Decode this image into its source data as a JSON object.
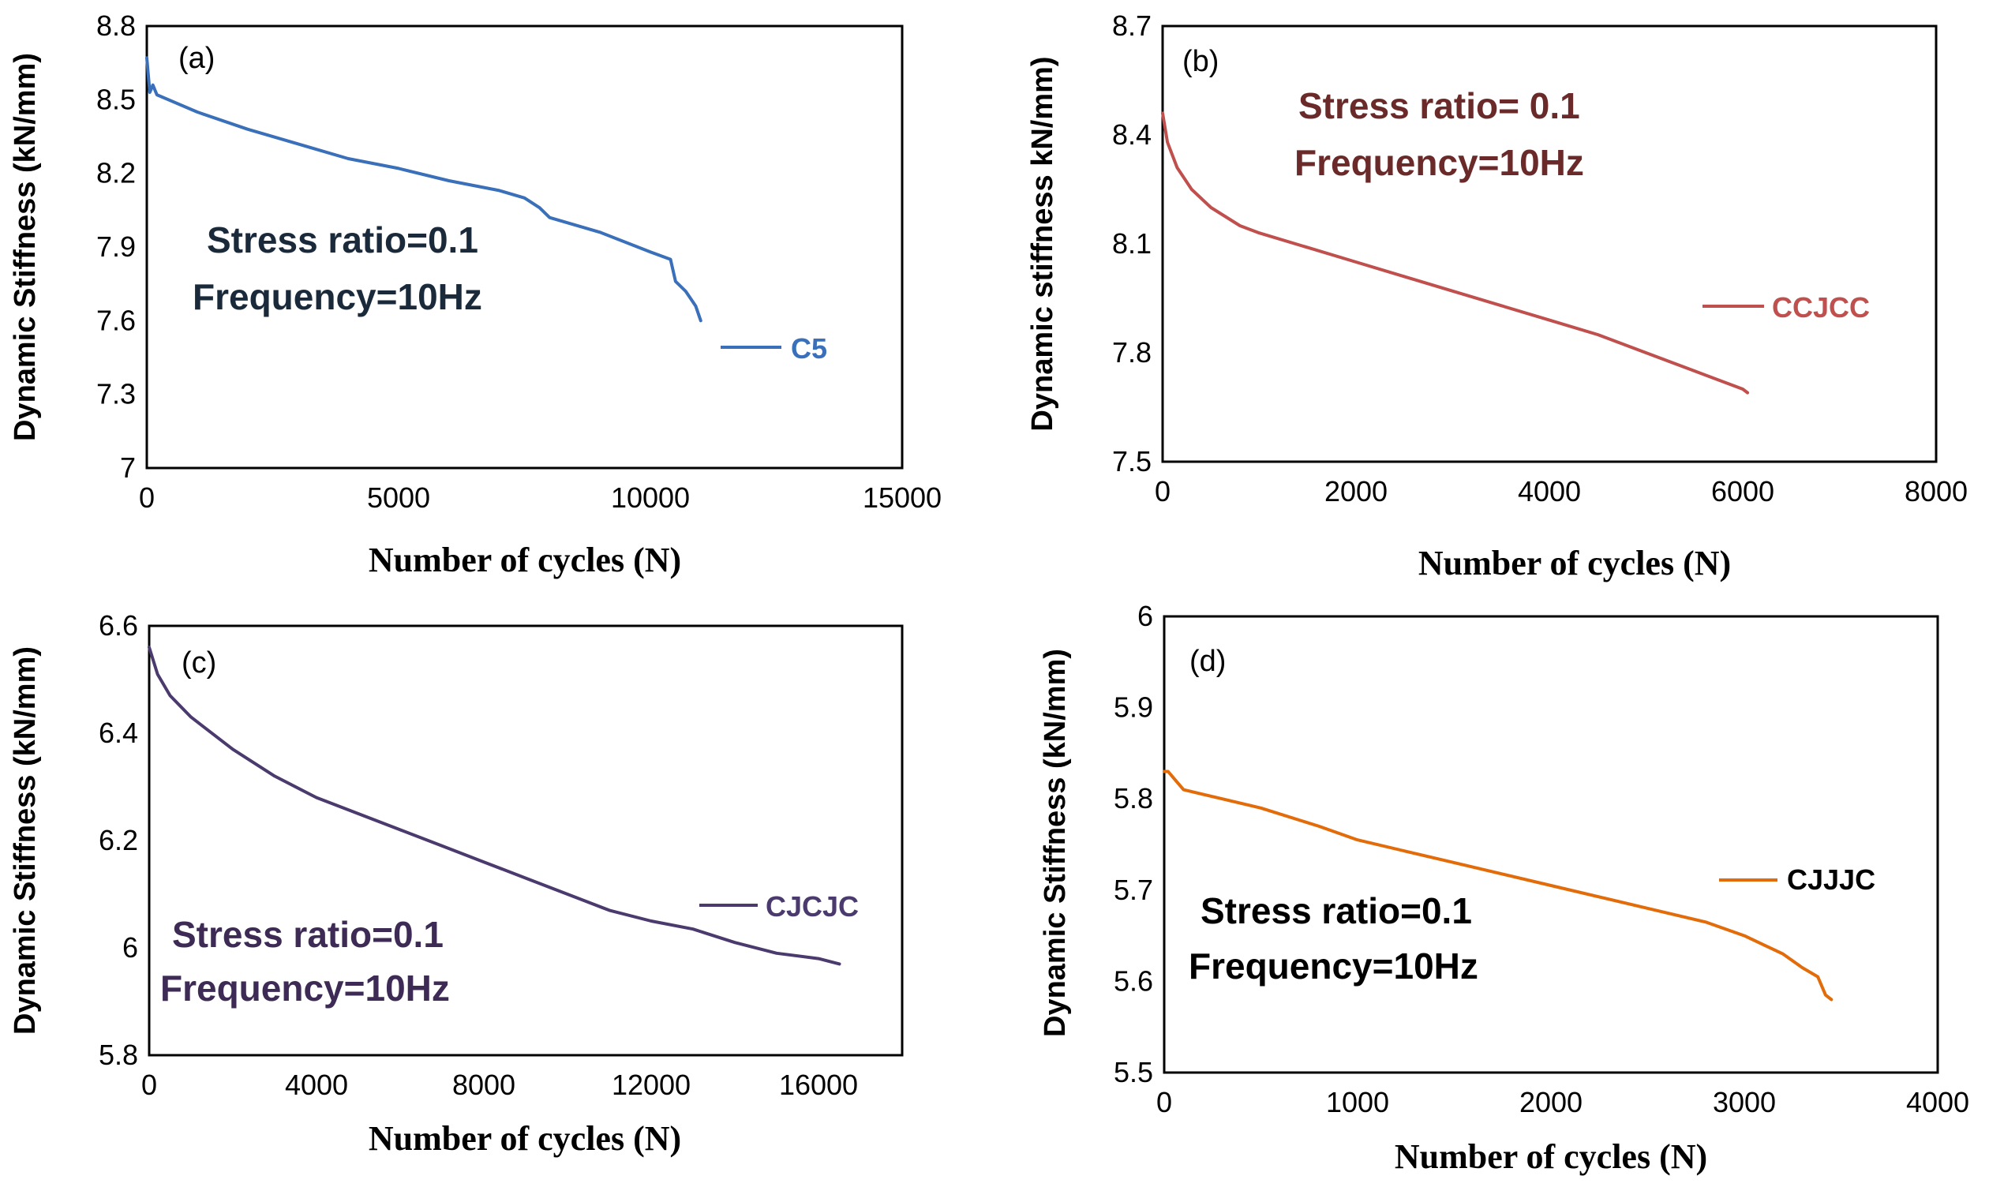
{
  "chart_data": [
    {
      "type": "line",
      "panel_label": "(a)",
      "ylabel": "Dynamic Stiffness (kN/mm)",
      "xlabel": "Number of cycles (N)",
      "xlim": [
        0,
        15000
      ],
      "ylim": [
        7,
        8.8
      ],
      "xticks": [
        0,
        5000,
        10000,
        15000
      ],
      "xtick_labels": [
        "0",
        "5000",
        "10000",
        "15000"
      ],
      "yticks": [
        7,
        7.3,
        7.6,
        7.9,
        8.2,
        8.5,
        8.8
      ],
      "ytick_labels": [
        "7",
        "7.3",
        "7.6",
        "7.9",
        "8.2",
        "8.5",
        "8.8"
      ],
      "annotations": [
        "Stress ratio=0.1",
        "Frequency=10Hz"
      ],
      "annotation_color": "#1a2a3a",
      "series": [
        {
          "name": "C5",
          "color": "#3a6fba",
          "x": [
            0,
            60,
            120,
            200,
            1000,
            2000,
            3000,
            4000,
            5000,
            6000,
            7000,
            7500,
            7800,
            8000,
            9000,
            10000,
            10400,
            10500,
            10700,
            10900,
            11000
          ],
          "y": [
            8.67,
            8.53,
            8.56,
            8.52,
            8.45,
            8.38,
            8.32,
            8.26,
            8.22,
            8.17,
            8.13,
            8.1,
            8.06,
            8.02,
            7.96,
            7.88,
            7.85,
            7.76,
            7.72,
            7.66,
            7.6
          ]
        }
      ]
    },
    {
      "type": "line",
      "panel_label": "(b)",
      "ylabel": "Dynamic stiffness kN/mm)",
      "xlabel": "Number of cycles (N)",
      "xlim": [
        0,
        8000
      ],
      "ylim": [
        7.5,
        8.7
      ],
      "xticks": [
        0,
        2000,
        4000,
        6000,
        8000
      ],
      "xtick_labels": [
        "0",
        "2000",
        "4000",
        "6000",
        "8000"
      ],
      "yticks": [
        7.5,
        7.8,
        8.1,
        8.4,
        8.7
      ],
      "ytick_labels": [
        "7.5",
        "7.8",
        "8.1",
        "8.4",
        "8.7"
      ],
      "annotations": [
        "Stress ratio= 0.1",
        "Frequency=10Hz"
      ],
      "annotation_color": "#6b2a2a",
      "series": [
        {
          "name": "CCJCC",
          "color": "#c0504d",
          "x": [
            0,
            50,
            150,
            300,
            500,
            800,
            1000,
            1500,
            2000,
            2500,
            3000,
            3500,
            4000,
            4500,
            5000,
            5500,
            6000,
            6050
          ],
          "y": [
            8.46,
            8.38,
            8.31,
            8.25,
            8.2,
            8.15,
            8.13,
            8.09,
            8.05,
            8.01,
            7.97,
            7.93,
            7.89,
            7.85,
            7.8,
            7.75,
            7.7,
            7.69
          ]
        }
      ]
    },
    {
      "type": "line",
      "panel_label": "(c)",
      "ylabel": "Dynamic Stiffness (kN/mm)",
      "xlabel": "Number of cycles (N)",
      "xlim": [
        0,
        18000
      ],
      "ylim": [
        5.8,
        6.6
      ],
      "xticks": [
        0,
        4000,
        8000,
        12000,
        16000
      ],
      "xtick_labels": [
        "0",
        "4000",
        "8000",
        "12000",
        "16000"
      ],
      "yticks": [
        5.8,
        6,
        6.2,
        6.4,
        6.6
      ],
      "ytick_labels": [
        "5.8",
        "6",
        "6.2",
        "6.4",
        "6.6"
      ],
      "annotations": [
        "Stress ratio=0.1",
        "Frequency=10Hz"
      ],
      "annotation_color": "#3d2b56",
      "series": [
        {
          "name": "CJCJC",
          "color": "#4b3a6e",
          "x": [
            0,
            200,
            500,
            1000,
            2000,
            3000,
            4000,
            5000,
            6000,
            7000,
            8000,
            9000,
            10000,
            11000,
            12000,
            13000,
            14000,
            15000,
            16000,
            16500
          ],
          "y": [
            6.56,
            6.51,
            6.47,
            6.43,
            6.37,
            6.32,
            6.28,
            6.25,
            6.22,
            6.19,
            6.16,
            6.13,
            6.1,
            6.07,
            6.05,
            6.035,
            6.01,
            5.99,
            5.98,
            5.97
          ]
        }
      ]
    },
    {
      "type": "line",
      "panel_label": "(d)",
      "ylabel": "Dynamic Stiffness (kN/mm)",
      "xlabel": "Number of cycles (N)",
      "xlim": [
        0,
        4000
      ],
      "ylim": [
        5.5,
        6
      ],
      "xticks": [
        0,
        1000,
        2000,
        3000,
        4000
      ],
      "xtick_labels": [
        "0",
        "1000",
        "2000",
        "3000",
        "4000"
      ],
      "yticks": [
        5.5,
        5.6,
        5.7,
        5.8,
        5.9,
        6
      ],
      "ytick_labels": [
        "5.5",
        "5.6",
        "5.7",
        "5.8",
        "5.9",
        "6"
      ],
      "annotations": [
        "Stress ratio=0.1",
        "Frequency=10Hz"
      ],
      "annotation_color": "#000000",
      "series": [
        {
          "name": "CJJJC",
          "color": "#e36c0a",
          "x": [
            0,
            20,
            60,
            100,
            300,
            500,
            800,
            1000,
            1500,
            2000,
            2500,
            2800,
            3000,
            3100,
            3200,
            3300,
            3380,
            3420,
            3450
          ],
          "y": [
            5.83,
            5.83,
            5.82,
            5.81,
            5.8,
            5.79,
            5.77,
            5.755,
            5.73,
            5.705,
            5.68,
            5.665,
            5.65,
            5.64,
            5.63,
            5.615,
            5.605,
            5.585,
            5.58
          ]
        }
      ]
    }
  ]
}
